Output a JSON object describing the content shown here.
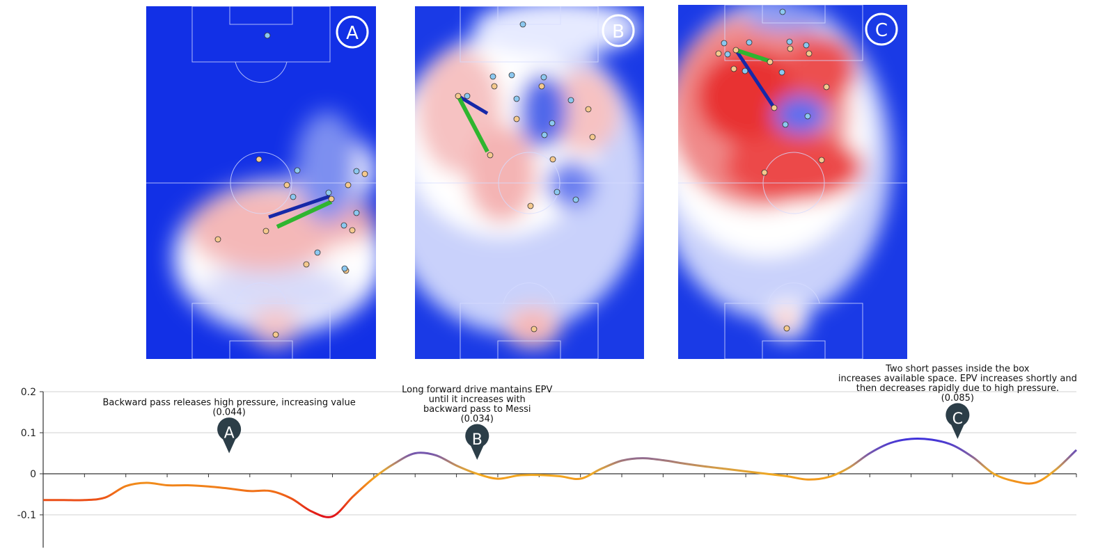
{
  "panels": [
    {
      "id": "A",
      "label": "A",
      "theme": "neutral"
    },
    {
      "id": "B",
      "label": "B",
      "theme": "mixed"
    },
    {
      "id": "C",
      "label": "C",
      "theme": "red"
    }
  ],
  "colors": {
    "high_value": "#e8202a",
    "low_value": "#0a2ae0",
    "team_attack": "#f5c98e",
    "team_defense": "#8cc8f0",
    "pass_arrow": "#2fb52f",
    "drive_arrow": "#1628a8",
    "marker": "#2c3e48"
  },
  "chart_data": {
    "type": "line",
    "title": "",
    "xlabel": "",
    "ylabel": "",
    "ylim": [
      -0.18,
      0.2
    ],
    "yticks": [
      0.2,
      0.1,
      0,
      -0.1
    ],
    "ytick_labels": [
      "0.2",
      "0.1",
      "0",
      "-0.1"
    ],
    "x": [
      0,
      2,
      4,
      6,
      8,
      10,
      12,
      14,
      16,
      18,
      20,
      22,
      24,
      26,
      28,
      30,
      32,
      34,
      36,
      38,
      40,
      42,
      44,
      46,
      48,
      50,
      52,
      54,
      56,
      58,
      60,
      62,
      64,
      66,
      68,
      70,
      72,
      74,
      76,
      78,
      80,
      82,
      84,
      86,
      88,
      90,
      92,
      94,
      96,
      98,
      100
    ],
    "y": [
      -0.064,
      -0.064,
      -0.064,
      -0.058,
      -0.03,
      -0.022,
      -0.028,
      -0.028,
      -0.031,
      -0.036,
      -0.042,
      -0.042,
      -0.06,
      -0.092,
      -0.104,
      -0.055,
      -0.01,
      0.025,
      0.05,
      0.045,
      0.02,
      0.0,
      -0.012,
      -0.004,
      -0.003,
      -0.006,
      -0.012,
      0.012,
      0.032,
      0.038,
      0.033,
      0.025,
      0.018,
      0.012,
      0.006,
      0.0,
      -0.006,
      -0.014,
      -0.008,
      0.015,
      0.05,
      0.075,
      0.085,
      0.083,
      0.07,
      0.04,
      0.0,
      -0.018,
      -0.022,
      0.01,
      0.058
    ],
    "annotations": [
      {
        "label": "A",
        "x": 18.0,
        "y": 0.05,
        "lines": [
          "Backward pass releases high pressure, increasing value",
          "(0.044)"
        ]
      },
      {
        "label": "B",
        "x": 42.0,
        "y": 0.034,
        "lines": [
          "Long forward drive mantains EPV",
          "until it increases with",
          "backward pass to Messi",
          "(0.034)"
        ]
      },
      {
        "label": "C",
        "x": 88.5,
        "y": 0.085,
        "lines": [
          "Two short passes inside the box",
          "increases available space. EPV increases shortly and",
          "then decreases rapidly due to high pressure.",
          "(0.085)"
        ]
      }
    ]
  }
}
